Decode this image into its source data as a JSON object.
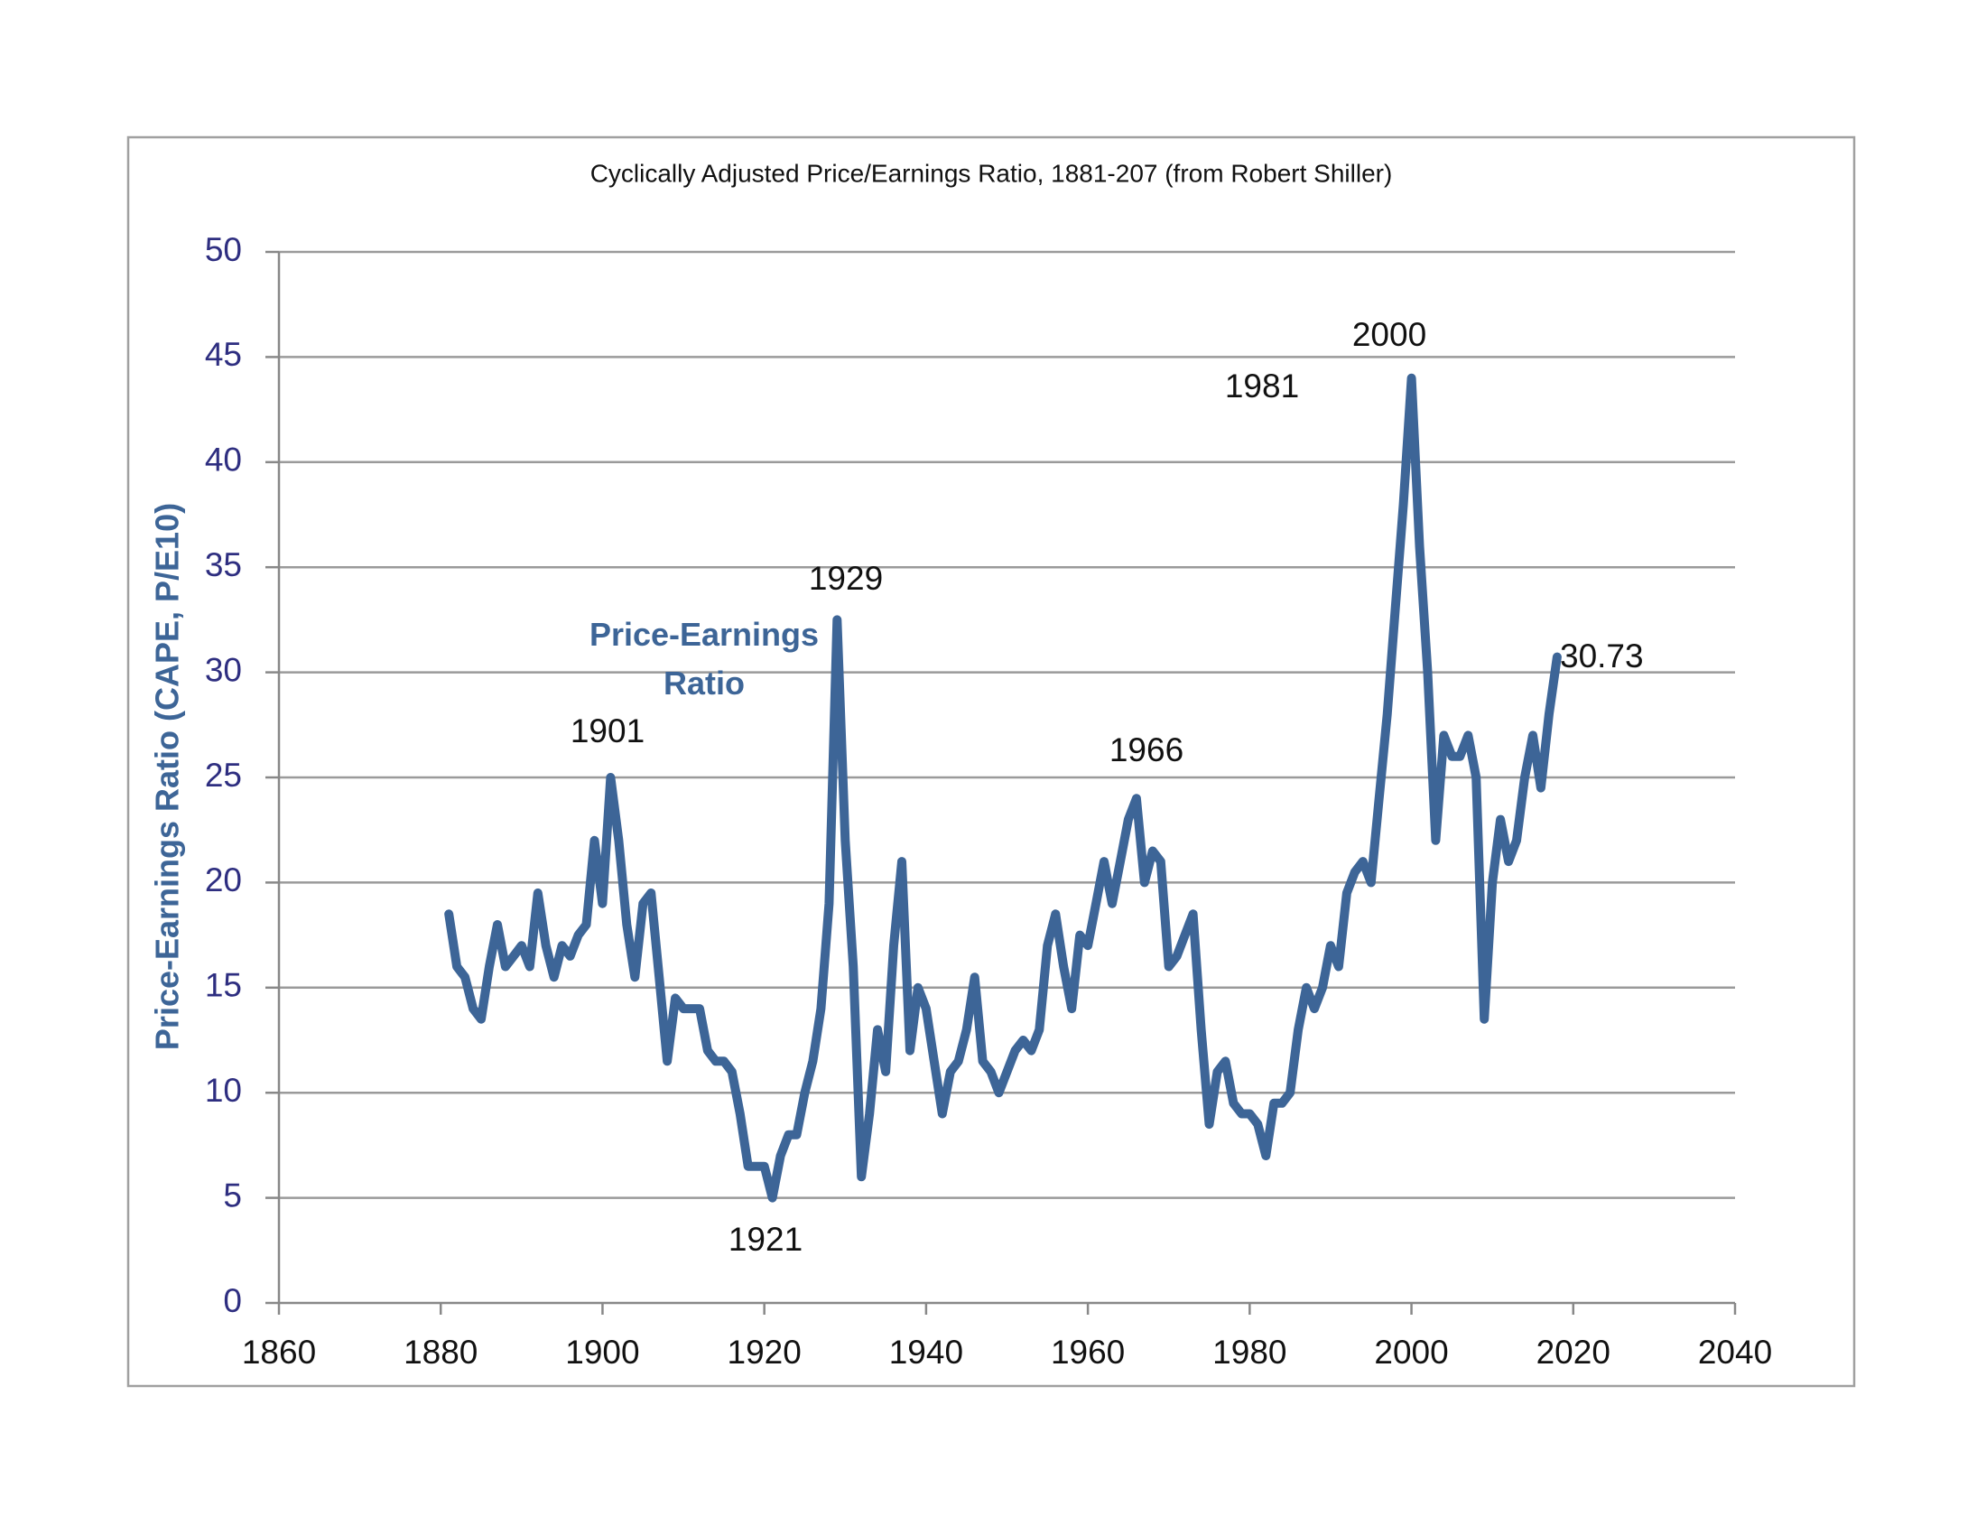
{
  "chart_data": {
    "type": "line",
    "title": "Cyclically Adjusted Price/Earnings Ratio, 1881-207 (from Robert Shiller)",
    "y_label": "Price-Earnings Ratio (CAPE, P/E10)",
    "x": [
      1881,
      1882,
      1883,
      1884,
      1885,
      1886,
      1887,
      1888,
      1889,
      1890,
      1891,
      1892,
      1893,
      1894,
      1895,
      1896,
      1897,
      1898,
      1899,
      1900,
      1901,
      1902,
      1903,
      1904,
      1905,
      1906,
      1907,
      1908,
      1909,
      1910,
      1911,
      1912,
      1913,
      1914,
      1915,
      1916,
      1917,
      1918,
      1919,
      1920,
      1921,
      1922,
      1923,
      1924,
      1925,
      1926,
      1927,
      1928,
      1929,
      1930,
      1931,
      1932,
      1933,
      1934,
      1935,
      1936,
      1937,
      1938,
      1939,
      1940,
      1941,
      1942,
      1943,
      1944,
      1945,
      1946,
      1947,
      1948,
      1949,
      1950,
      1951,
      1952,
      1953,
      1954,
      1955,
      1956,
      1957,
      1958,
      1959,
      1960,
      1961,
      1962,
      1963,
      1964,
      1965,
      1966,
      1967,
      1968,
      1969,
      1970,
      1971,
      1972,
      1973,
      1974,
      1975,
      1976,
      1977,
      1978,
      1979,
      1980,
      1981,
      1982,
      1983,
      1984,
      1985,
      1986,
      1987,
      1988,
      1989,
      1990,
      1991,
      1992,
      1993,
      1994,
      1995,
      1996,
      1997,
      1998,
      1999,
      2000,
      2001,
      2002,
      2003,
      2004,
      2005,
      2006,
      2007,
      2008,
      2009,
      2010,
      2011,
      2012,
      2013,
      2014,
      2015,
      2016,
      2017,
      2018
    ],
    "series": [
      {
        "name": "Price-Earnings Ratio",
        "color": "#3d6597",
        "values": [
          18.5,
          16,
          15.5,
          14,
          13.5,
          16,
          18,
          16,
          16.5,
          17,
          16,
          19.5,
          17,
          15.5,
          17,
          16.5,
          17.5,
          18,
          22,
          19,
          25,
          22,
          18,
          15.5,
          19,
          19.5,
          15.5,
          11.5,
          14.5,
          14,
          14,
          14,
          12,
          11.5,
          11.5,
          11,
          9,
          6.5,
          6.5,
          6.5,
          5,
          7,
          8,
          8,
          10,
          11.5,
          14,
          19,
          32.5,
          22,
          16,
          6,
          9,
          13,
          11,
          17,
          21,
          12,
          15,
          14,
          11.5,
          9,
          11,
          11.5,
          13,
          15.5,
          11.5,
          11,
          10,
          11,
          12,
          12.5,
          12,
          13,
          17,
          18.5,
          16,
          14,
          17.5,
          17,
          19,
          21,
          19,
          21,
          23,
          24,
          20,
          21.5,
          21,
          16,
          16.5,
          17.5,
          18.5,
          13,
          8.5,
          11,
          11.5,
          9.5,
          9,
          9,
          8.5,
          7,
          9.5,
          9.5,
          10,
          13,
          15,
          14,
          15,
          17,
          16,
          19.5,
          20.5,
          21,
          20,
          24,
          28,
          33,
          38,
          44,
          36,
          30,
          22,
          27,
          26,
          26,
          27,
          25,
          13.5,
          20,
          23,
          21,
          22,
          25,
          27,
          24.5,
          28,
          30.73
        ]
      }
    ],
    "annotations": [
      "1901",
      "1921",
      "1929",
      "1966",
      "1981",
      "2000",
      "30.73"
    ],
    "xlim": [
      1860,
      2040
    ],
    "xticks": [
      1860,
      1880,
      1900,
      1920,
      1940,
      1960,
      1980,
      2000,
      2020,
      2040
    ],
    "ylim": [
      0,
      50
    ],
    "yticks": [
      0,
      5,
      10,
      15,
      20,
      25,
      30,
      35,
      40,
      45,
      50
    ],
    "grid": true
  }
}
